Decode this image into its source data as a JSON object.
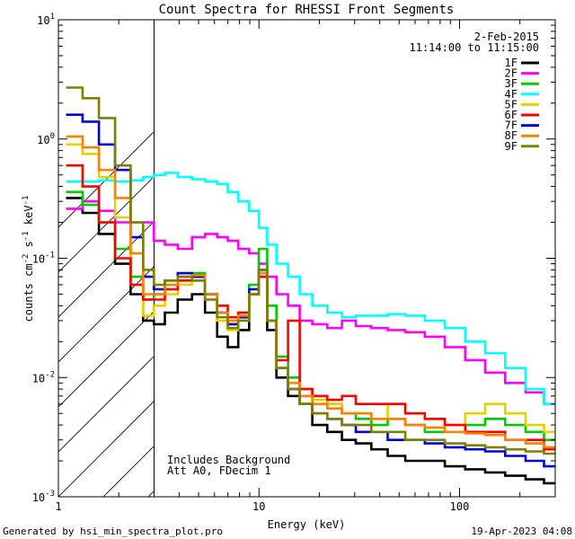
{
  "chart_data": {
    "type": "line",
    "title": "Count Spectra for RHESSI Front Segments",
    "xlabel": "Energy (keV)",
    "ylabel": {
      "main": "counts cm",
      "e1": "-2",
      "s": " s",
      "e2": "-1",
      "kev": " keV",
      "e3": "-1"
    },
    "xscale": "log",
    "yscale": "log",
    "xlim": [
      1.0,
      300
    ],
    "ylim": [
      0.001,
      10
    ],
    "x_ticks": [
      {
        "v": 1,
        "label": "1"
      },
      {
        "v": 10,
        "label": "10"
      },
      {
        "v": 100,
        "label": "100"
      }
    ],
    "y_ticks": [
      {
        "v": 10,
        "base": "10",
        "exp": "1"
      },
      {
        "v": 1,
        "base": "10",
        "exp": "0"
      },
      {
        "v": 0.1,
        "base": "10",
        "exp": "-1"
      },
      {
        "v": 0.01,
        "base": "10",
        "exp": "-2"
      },
      {
        "v": 0.001,
        "base": "10",
        "exp": "-3"
      }
    ],
    "date": "2-Feb-2015",
    "time_range": "11:14:00 to 11:15:00",
    "hatch_region_kev": [
      1.0,
      3.0
    ],
    "annotations": [
      "Includes Background",
      "Att A0, FDecim 1"
    ],
    "series": [
      {
        "name": "1F",
        "color": "#000000",
        "x": [
          1.2,
          1.45,
          1.75,
          2.1,
          2.5,
          2.8,
          3.2,
          3.6,
          4.3,
          5.0,
          5.8,
          6.6,
          7.4,
          8.4,
          9.5,
          10.5,
          11.5,
          13,
          15,
          17,
          20,
          24,
          28,
          33,
          40,
          48,
          60,
          75,
          95,
          120,
          150,
          190,
          240,
          290
        ],
        "y": [
          0.32,
          0.24,
          0.16,
          0.09,
          0.05,
          0.03,
          0.028,
          0.035,
          0.045,
          0.05,
          0.035,
          0.022,
          0.018,
          0.025,
          0.05,
          0.07,
          0.025,
          0.01,
          0.007,
          0.006,
          0.004,
          0.0035,
          0.003,
          0.0028,
          0.0025,
          0.0022,
          0.002,
          0.002,
          0.0018,
          0.0017,
          0.0016,
          0.0015,
          0.0014,
          0.0013
        ]
      },
      {
        "name": "2F",
        "color": "#ff00ff",
        "x": [
          1.2,
          1.45,
          1.75,
          2.1,
          2.5,
          2.8,
          3.2,
          3.6,
          4.3,
          5.0,
          5.8,
          6.6,
          7.4,
          8.4,
          9.5,
          10.5,
          11.5,
          13,
          15,
          17,
          20,
          24,
          28,
          33,
          40,
          48,
          60,
          75,
          95,
          120,
          150,
          190,
          240,
          290
        ],
        "y": [
          0.26,
          0.3,
          0.25,
          0.2,
          0.2,
          0.2,
          0.14,
          0.13,
          0.12,
          0.15,
          0.16,
          0.15,
          0.14,
          0.12,
          0.11,
          0.09,
          0.07,
          0.05,
          0.04,
          0.03,
          0.028,
          0.026,
          0.03,
          0.027,
          0.026,
          0.025,
          0.024,
          0.022,
          0.018,
          0.014,
          0.011,
          0.009,
          0.0075,
          0.006
        ]
      },
      {
        "name": "3F",
        "color": "#00cc00",
        "x": [
          1.2,
          1.45,
          1.75,
          2.1,
          2.5,
          2.8,
          3.2,
          3.6,
          4.3,
          5.0,
          5.8,
          6.6,
          7.4,
          8.4,
          9.5,
          10.5,
          11.5,
          13,
          15,
          17,
          20,
          24,
          28,
          33,
          40,
          48,
          60,
          75,
          95,
          120,
          150,
          190,
          240,
          290
        ],
        "y": [
          0.36,
          0.28,
          0.2,
          0.12,
          0.07,
          0.045,
          0.05,
          0.06,
          0.07,
          0.075,
          0.05,
          0.035,
          0.028,
          0.035,
          0.06,
          0.12,
          0.04,
          0.015,
          0.01,
          0.008,
          0.007,
          0.006,
          0.005,
          0.0045,
          0.004,
          0.0045,
          0.004,
          0.0035,
          0.0035,
          0.004,
          0.0045,
          0.004,
          0.0035,
          0.003
        ]
      },
      {
        "name": "4F",
        "color": "#00ffff",
        "x": [
          1.2,
          1.45,
          1.75,
          2.1,
          2.5,
          2.8,
          3.2,
          3.6,
          4.3,
          5.0,
          5.8,
          6.6,
          7.4,
          8.4,
          9.5,
          10.5,
          11.5,
          13,
          15,
          17,
          20,
          24,
          28,
          33,
          40,
          48,
          60,
          75,
          95,
          120,
          150,
          190,
          240,
          290
        ],
        "y": [
          0.44,
          0.44,
          0.45,
          0.44,
          0.45,
          0.48,
          0.5,
          0.52,
          0.48,
          0.46,
          0.44,
          0.42,
          0.36,
          0.3,
          0.25,
          0.18,
          0.13,
          0.09,
          0.07,
          0.05,
          0.04,
          0.035,
          0.032,
          0.033,
          0.033,
          0.034,
          0.033,
          0.03,
          0.026,
          0.02,
          0.016,
          0.012,
          0.008,
          0.006
        ]
      },
      {
        "name": "5F",
        "color": "#e6d000",
        "x": [
          1.2,
          1.45,
          1.75,
          2.1,
          2.5,
          2.8,
          3.2,
          3.6,
          4.3,
          5.0,
          5.8,
          6.6,
          7.4,
          8.4,
          9.5,
          10.5,
          11.5,
          13,
          15,
          17,
          20,
          24,
          28,
          33,
          40,
          48,
          60,
          75,
          95,
          120,
          150,
          190,
          240,
          290
        ],
        "y": [
          0.9,
          0.75,
          0.48,
          0.22,
          0.06,
          0.033,
          0.04,
          0.05,
          0.06,
          0.065,
          0.045,
          0.03,
          0.025,
          0.03,
          0.05,
          0.08,
          0.03,
          0.012,
          0.008,
          0.007,
          0.0065,
          0.006,
          0.005,
          0.005,
          0.0045,
          0.006,
          0.005,
          0.0045,
          0.004,
          0.005,
          0.006,
          0.005,
          0.004,
          0.0035
        ]
      },
      {
        "name": "6F",
        "color": "#ff0000",
        "x": [
          1.2,
          1.45,
          1.75,
          2.1,
          2.5,
          2.8,
          3.2,
          3.6,
          4.3,
          5.0,
          5.8,
          6.6,
          7.4,
          8.4,
          9.5,
          10.5,
          11.5,
          13,
          15,
          17,
          20,
          24,
          28,
          33,
          40,
          48,
          60,
          75,
          95,
          120,
          150,
          190,
          240,
          290
        ],
        "y": [
          0.6,
          0.4,
          0.2,
          0.1,
          0.06,
          0.045,
          0.045,
          0.055,
          0.065,
          0.07,
          0.05,
          0.04,
          0.032,
          0.035,
          0.05,
          0.07,
          0.03,
          0.014,
          0.03,
          0.008,
          0.007,
          0.0065,
          0.007,
          0.006,
          0.006,
          0.006,
          0.005,
          0.0045,
          0.004,
          0.0035,
          0.0035,
          0.003,
          0.003,
          0.0025
        ]
      },
      {
        "name": "7F",
        "color": "#0000dd",
        "x": [
          1.2,
          1.45,
          1.75,
          2.1,
          2.5,
          2.8,
          3.2,
          3.6,
          4.3,
          5.0,
          5.8,
          6.6,
          7.4,
          8.4,
          9.5,
          10.5,
          11.5,
          13,
          15,
          17,
          20,
          24,
          28,
          33,
          40,
          48,
          60,
          75,
          95,
          120,
          150,
          190,
          240,
          290
        ],
        "y": [
          1.6,
          1.4,
          0.9,
          0.55,
          0.15,
          0.07,
          0.055,
          0.065,
          0.075,
          0.07,
          0.05,
          0.035,
          0.028,
          0.032,
          0.055,
          0.08,
          0.03,
          0.012,
          0.008,
          0.006,
          0.005,
          0.0045,
          0.004,
          0.0035,
          0.0035,
          0.003,
          0.003,
          0.0028,
          0.0026,
          0.0025,
          0.0024,
          0.0022,
          0.002,
          0.0018
        ]
      },
      {
        "name": "8F",
        "color": "#ff8000",
        "x": [
          1.2,
          1.45,
          1.75,
          2.1,
          2.5,
          2.8,
          3.2,
          3.6,
          4.3,
          5.0,
          5.8,
          6.6,
          7.4,
          8.4,
          9.5,
          10.5,
          11.5,
          13,
          15,
          17,
          20,
          24,
          28,
          33,
          40,
          48,
          60,
          75,
          95,
          120,
          150,
          190,
          240,
          290
        ],
        "y": [
          1.05,
          0.85,
          0.55,
          0.32,
          0.11,
          0.05,
          0.05,
          0.06,
          0.07,
          0.072,
          0.05,
          0.035,
          0.03,
          0.033,
          0.05,
          0.075,
          0.03,
          0.012,
          0.009,
          0.007,
          0.006,
          0.0055,
          0.005,
          0.005,
          0.0045,
          0.0045,
          0.004,
          0.0038,
          0.0035,
          0.0034,
          0.0033,
          0.003,
          0.0028,
          0.0026
        ]
      },
      {
        "name": "9F",
        "color": "#808000",
        "x": [
          1.2,
          1.45,
          1.75,
          2.1,
          2.5,
          2.8,
          3.2,
          3.6,
          4.3,
          5.0,
          5.8,
          6.6,
          7.4,
          8.4,
          9.5,
          10.5,
          11.5,
          13,
          15,
          17,
          20,
          24,
          28,
          33,
          40,
          48,
          60,
          75,
          95,
          120,
          150,
          190,
          240,
          290
        ],
        "y": [
          2.7,
          2.2,
          1.5,
          0.6,
          0.2,
          0.08,
          0.06,
          0.065,
          0.07,
          0.065,
          0.045,
          0.032,
          0.026,
          0.03,
          0.05,
          0.08,
          0.03,
          0.012,
          0.008,
          0.006,
          0.005,
          0.0045,
          0.004,
          0.004,
          0.0035,
          0.0035,
          0.003,
          0.003,
          0.0028,
          0.0027,
          0.0026,
          0.0025,
          0.0024,
          0.0023
        ]
      }
    ]
  },
  "footer": {
    "left": "Generated by hsi_min_spectra_plot.pro",
    "right": "19-Apr-2023 04:08"
  }
}
